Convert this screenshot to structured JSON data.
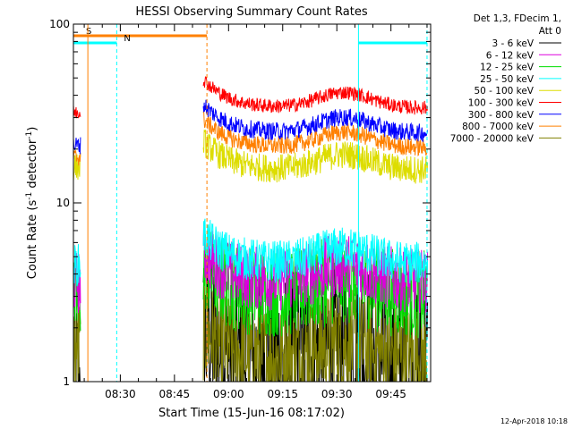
{
  "chart_data": {
    "type": "line",
    "title": "HESSI Observing Summary Count Rates",
    "xlabel": "Start Time (15-Jun-16 08:17:02)",
    "ylabel": "Count Rate (s",
    "ylabel_sup1": "-1",
    "ylabel_mid": " detector",
    "ylabel_sup2": "-1",
    "ylabel_end": ")",
    "x_start": "08:17:02",
    "xlim": [
      "08:17",
      "09:56"
    ],
    "x_ticks": [
      "08:30",
      "08:45",
      "09:00",
      "09:15",
      "09:30",
      "09:45"
    ],
    "y_scale": "log",
    "ylim": [
      1,
      100
    ],
    "y_ticks": [
      "1",
      "10",
      "100"
    ],
    "grid": false,
    "legend_header": [
      "Det 1,3, FDecim 1,",
      "Att 0"
    ],
    "legend_position": "right",
    "series": [
      {
        "name": "3 - 6 keV",
        "color": "#000000",
        "level_pre": 1.0,
        "level_post": 1.5,
        "noise": 0.5,
        "floor": 1.0
      },
      {
        "name": "6 - 12 keV",
        "color": "#dd00dd",
        "level_pre": 3.6,
        "level_post": 4.3,
        "noise": 0.18,
        "floor": 1.0
      },
      {
        "name": "12 - 25 keV",
        "color": "#00dd00",
        "level_pre": 2.8,
        "level_post": 3.6,
        "noise": 0.25,
        "floor": 1.0
      },
      {
        "name": "25 - 50 keV",
        "color": "#00ffff",
        "level_pre": 4.5,
        "level_post": 5.4,
        "noise": 0.12,
        "floor": 1.0
      },
      {
        "name": "50 - 100 keV",
        "color": "#dddd00",
        "level_pre": 16,
        "level_post": 18,
        "noise": 0.08,
        "floor": 10
      },
      {
        "name": "100 - 300 keV",
        "color": "#ff0000",
        "level_pre": 32,
        "level_post": 40,
        "noise": 0.04,
        "floor": 10
      },
      {
        "name": "300 - 800 keV",
        "color": "#0000ff",
        "level_pre": 21,
        "level_post": 29,
        "noise": 0.05,
        "floor": 10
      },
      {
        "name": "800 - 7000 keV",
        "color": "#ff8000",
        "level_pre": 18,
        "level_post": 24,
        "noise": 0.05,
        "floor": 10
      },
      {
        "name": "7000 - 20000 keV",
        "color": "#808000",
        "level_pre": 1.5,
        "level_post": 1.6,
        "noise": 0.3,
        "floor": 1.0
      }
    ],
    "data_gap": [
      "08:19",
      "08:53"
    ],
    "flags": [
      {
        "label": "S",
        "start": "08:17",
        "end": "08:54",
        "color": "#ff8000"
      },
      {
        "label": "N",
        "start": "08:17",
        "end": "08:29",
        "color": "#00ffff"
      },
      {
        "label": "",
        "start": "09:36",
        "end": "09:55",
        "color": "#00ffff"
      }
    ],
    "vlines": [
      {
        "time": "08:21",
        "color": "#ff8000",
        "style": "solid"
      },
      {
        "time": "08:29",
        "color": "#00ffff",
        "style": "dashed"
      },
      {
        "time": "08:54",
        "color": "#ff8000",
        "style": "dashed"
      },
      {
        "time": "09:36",
        "color": "#00ffff",
        "style": "solid"
      },
      {
        "time": "09:55",
        "color": "#00ffff",
        "style": "dashed"
      }
    ]
  },
  "footer_date": "12-Apr-2018 10:18"
}
